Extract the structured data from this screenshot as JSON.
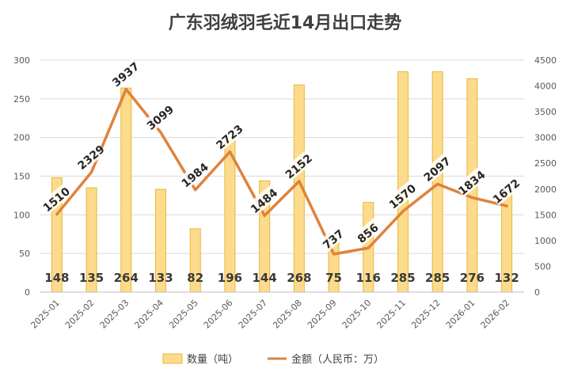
{
  "chart_data": {
    "type": "bar+line",
    "title": "广东羽绒羽毛近14月出口走势",
    "categories": [
      "2025-01",
      "2025-02",
      "2025-03",
      "2025-04",
      "2025-05",
      "2025-06",
      "2025-07",
      "2025-08",
      "2025-09",
      "2025-10",
      "2025-11",
      "2025-12",
      "2026-01",
      "2026-02"
    ],
    "series": [
      {
        "name": "数量（吨）",
        "type": "bar",
        "axis": "left",
        "color": "#FCDB8C",
        "edge_color": "#E8B83A",
        "values": [
          148,
          135,
          264,
          133,
          82,
          196,
          144,
          268,
          75,
          116,
          285,
          285,
          276,
          132
        ],
        "labels": [
          "148",
          "135",
          "264",
          "133",
          "82",
          "196",
          "144",
          "268",
          "75",
          "116",
          "285",
          "285",
          "276",
          "132"
        ]
      },
      {
        "name": "金额（人民币：万）",
        "type": "line",
        "axis": "right",
        "color": "#E0823C",
        "values": [
          1510,
          2329,
          3937,
          3099,
          1984,
          2723,
          1484,
          2152,
          737,
          856,
          1570,
          2097,
          1834,
          1672
        ],
        "labels": [
          "1510",
          "2329",
          "3937",
          "3099",
          "1984",
          "2723",
          "1484",
          "2152",
          "737",
          "856",
          "1570",
          "2097",
          "1834",
          "1672"
        ]
      }
    ],
    "y_left": {
      "min": 0,
      "max": 300,
      "ticks": [
        "0",
        "50",
        "100",
        "150",
        "200",
        "250",
        "300"
      ]
    },
    "y_right": {
      "min": 0,
      "max": 4500,
      "ticks": [
        "0",
        "500",
        "1000",
        "1500",
        "2000",
        "2500",
        "3000",
        "3500",
        "4000",
        "4500"
      ]
    },
    "grid": true,
    "legend_position": "bottom"
  }
}
